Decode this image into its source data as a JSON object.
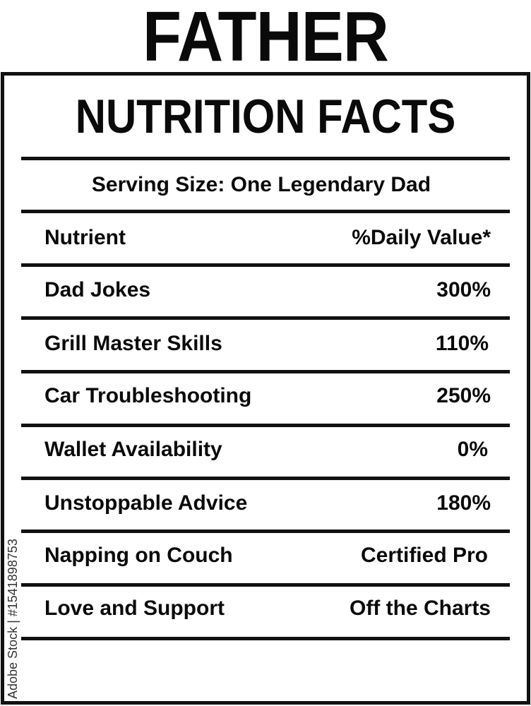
{
  "title": "FATHER",
  "subtitle": "NUTRITION FACTS",
  "serving": "Serving Size: One Legendary Dad",
  "header": {
    "nutrient": "Nutrient",
    "value": "%Daily Value*"
  },
  "rows": [
    {
      "nutrient": "Dad Jokes",
      "value": "300%"
    },
    {
      "nutrient": "Grill Master Skills",
      "value": "110%"
    },
    {
      "nutrient": "Car Troubleshooting",
      "value": "250%"
    },
    {
      "nutrient": "Wallet Availability",
      "value": "0%"
    },
    {
      "nutrient": "Unstoppable Advice",
      "value": "180%"
    },
    {
      "nutrient": "Napping on Couch",
      "value": "Certified Pro"
    },
    {
      "nutrient": "Love and Support",
      "value": "Off the Charts"
    }
  ],
  "watermark": "Adobe Stock | #1541898753"
}
